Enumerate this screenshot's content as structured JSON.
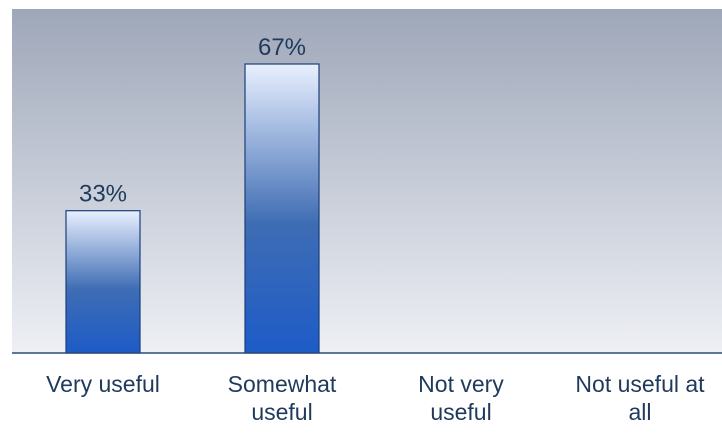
{
  "chart_data": {
    "type": "bar",
    "categories": [
      [
        "Very useful"
      ],
      [
        "Somewhat",
        "useful"
      ],
      [
        "Not very",
        "useful"
      ],
      [
        "Not useful at",
        "all"
      ]
    ],
    "values": [
      33,
      67,
      0,
      0
    ],
    "value_labels": [
      "33%",
      "67%",
      "",
      ""
    ],
    "ylim": [
      0,
      100
    ],
    "grid": false,
    "legend": "none",
    "colors": {
      "plot_bg_top": "#9ea7b9",
      "plot_bg_bottom": "#eef0f5",
      "bar_top": "#e9f0ff",
      "bar_mid": "#3f6db4",
      "bar_bottom": "#1d5bc7",
      "bar_stroke": "#1b3f7a",
      "axis": "#2b4a7a",
      "text": "#1f3a5c"
    }
  }
}
